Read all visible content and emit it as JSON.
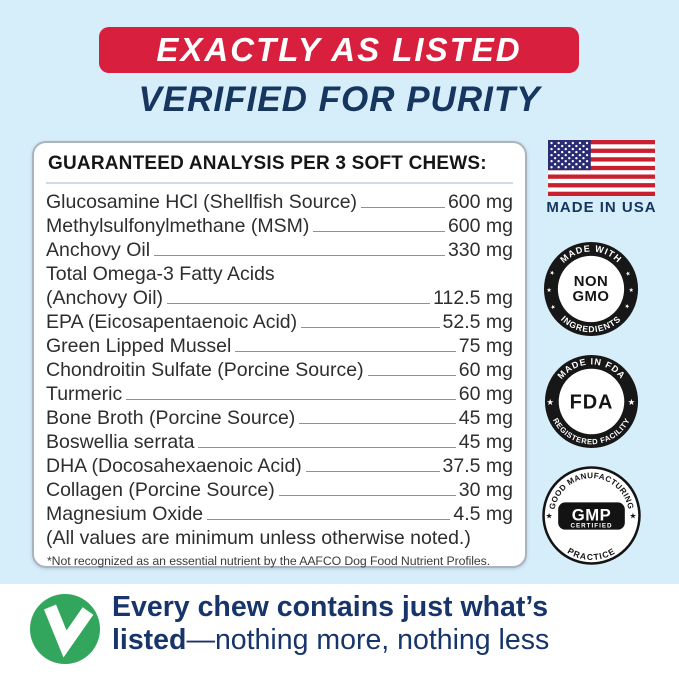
{
  "colors": {
    "background": "#d6edfa",
    "banner_red": "#d81f3d",
    "navy": "#16355f",
    "green_check": "#31a65c",
    "badge_black": "#171717",
    "flag_red": "#c8202f",
    "flag_blue": "#2a2d74",
    "panel_white": "#ffffff"
  },
  "header": {
    "banner_label": "EXACTLY AS LISTED",
    "subtitle": "VERIFIED FOR PURITY"
  },
  "analysis_panel": {
    "title": "GUARANTEED ANALYSIS PER 3 SOFT CHEWS:",
    "rows": [
      {
        "name": "Glucosamine HCl (Shellfish Source)",
        "value": "600 mg"
      },
      {
        "name": "Methylsulfonylmethane (MSM)",
        "value": "600 mg"
      },
      {
        "name": "Anchovy Oil",
        "value": "330 mg"
      },
      {
        "line1": "Total Omega-3 Fatty Acids",
        "name": "(Anchovy Oil)",
        "value": "112.5 mg"
      },
      {
        "name": "EPA (Eicosapentaenoic Acid)",
        "value": "52.5 mg"
      },
      {
        "name": "Green Lipped Mussel",
        "value": "75 mg"
      },
      {
        "name": "Chondroitin Sulfate (Porcine Source)",
        "value": "60 mg"
      },
      {
        "name": "Turmeric",
        "value": "60 mg"
      },
      {
        "name": "Bone Broth (Porcine Source)",
        "value": "45 mg"
      },
      {
        "name": "Boswellia serrata",
        "value": "45 mg"
      },
      {
        "name": "DHA (Docosahexaenoic Acid)",
        "value": "37.5 mg"
      },
      {
        "name": "Collagen (Porcine Source)",
        "value": "30 mg"
      },
      {
        "name": "Magnesium Oxide",
        "value": "4.5 mg"
      }
    ],
    "note": "(All values are minimum unless otherwise noted.)",
    "footnote": "*Not recognized as an essential nutrient by the AAFCO Dog Food Nutrient Profiles."
  },
  "badges": {
    "made_in_usa_label": "MADE IN USA",
    "star_glyph": "★",
    "non_gmo": {
      "arc_top": "MADE WITH",
      "center_line1": "NON",
      "center_line2": "GMO",
      "arc_bottom": "INGREDIENTS"
    },
    "fda": {
      "arc_top": "MADE IN FDA",
      "center": "FDA",
      "arc_bottom": "REGISTERED FACILITY"
    },
    "gmp": {
      "arc_top": "GOOD MANUFACTURING",
      "center_line1": "GMP",
      "center_line2": "CERTIFIED",
      "arc_bottom": "PRACTICE"
    }
  },
  "footer": {
    "line1": "Every chew contains just what’s",
    "line2_bold": "listed",
    "line2_regular": "—nothing more, nothing less"
  }
}
